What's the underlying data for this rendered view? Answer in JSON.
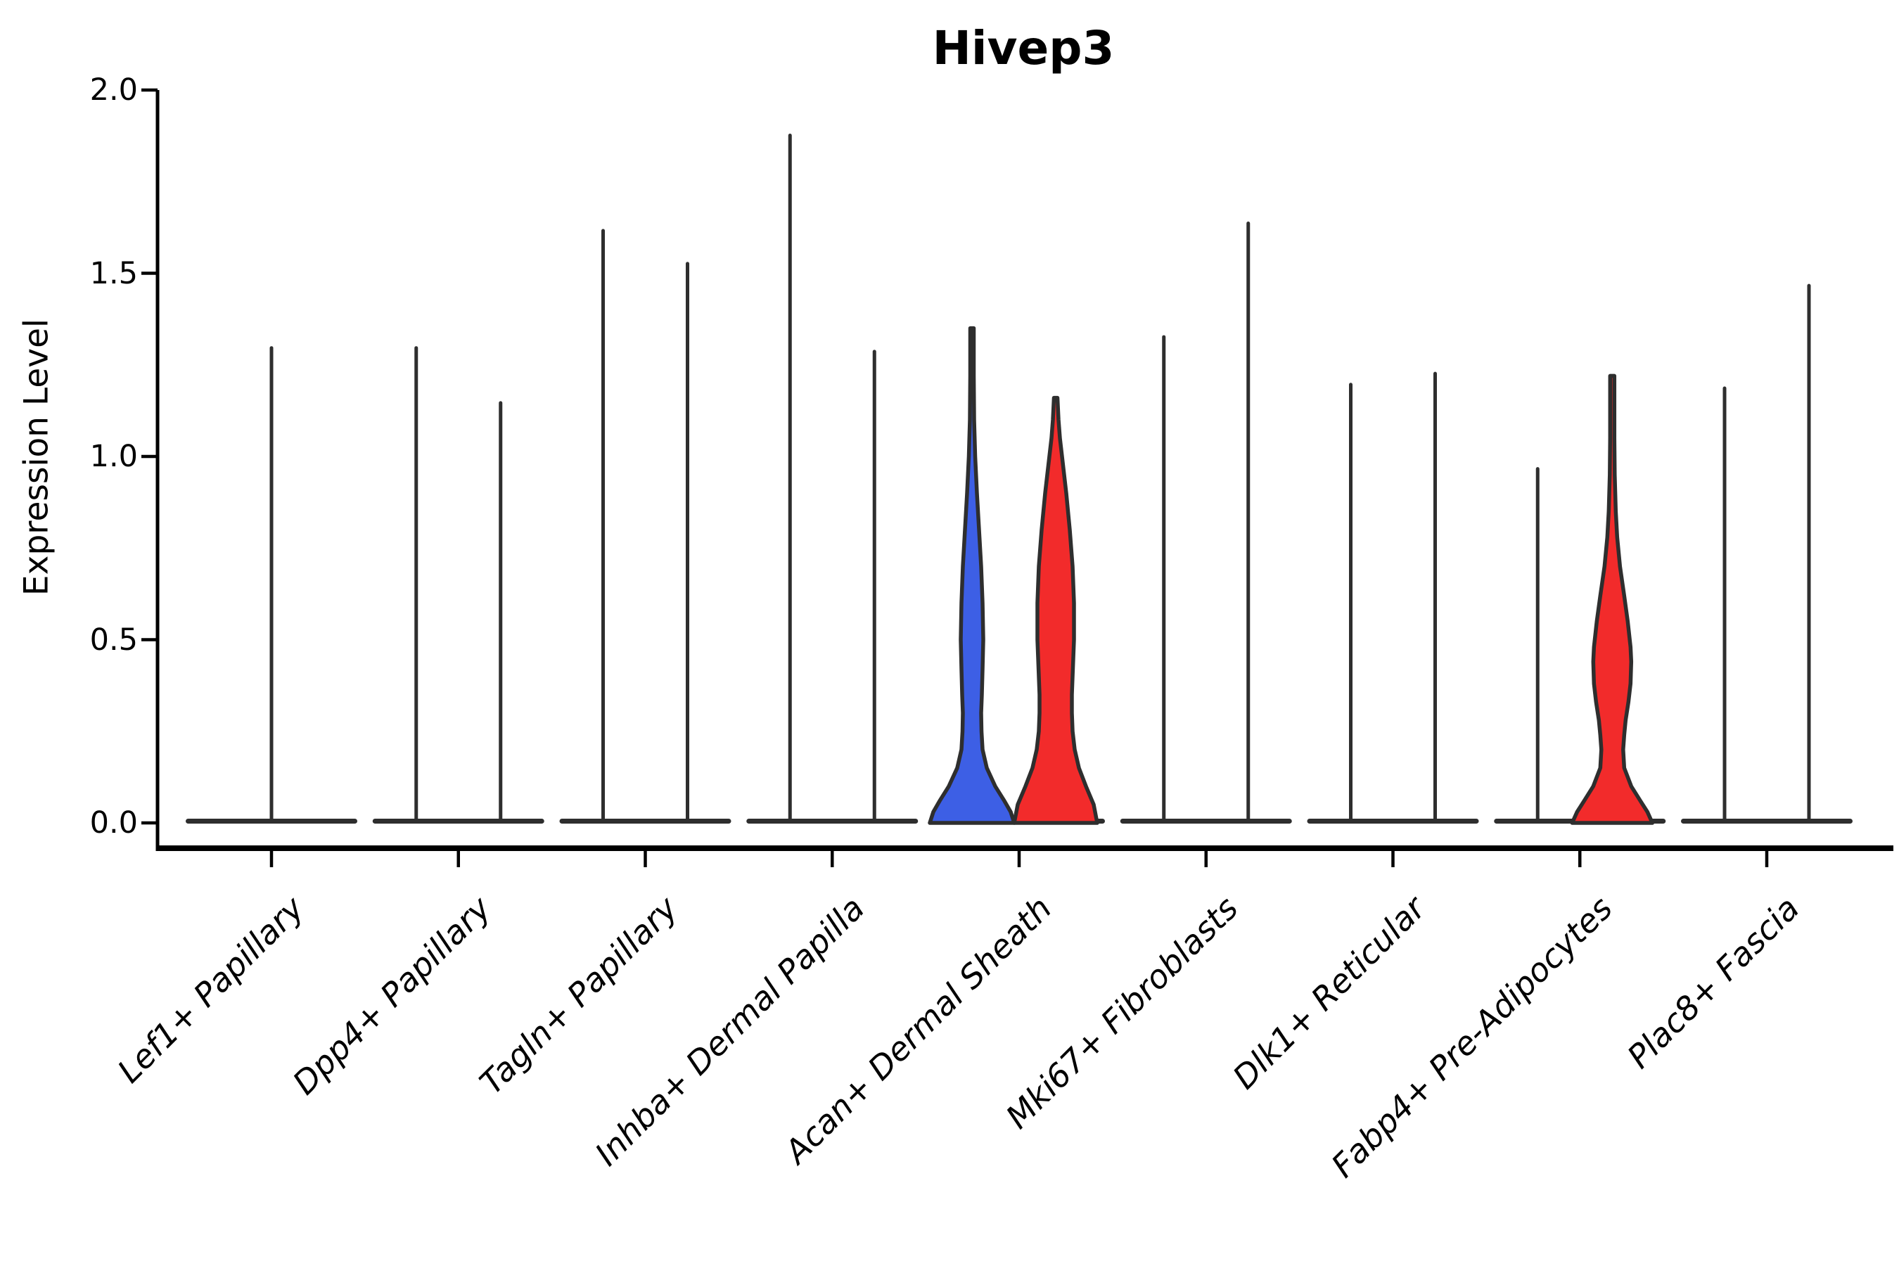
{
  "title": "Hivep3",
  "y_axis": {
    "label": "Expression Level",
    "ticks": [
      "2.0",
      "1.5",
      "1.0",
      "0.5",
      "0.0"
    ],
    "tick_values": [
      2.0,
      1.5,
      1.0,
      0.5,
      0.0
    ]
  },
  "x_axis": {
    "labels": [
      "Lef1+ Papillary",
      "Dpp4+ Papillary",
      "Tagln+ Papillary",
      "Inhba+ Dermal Papilla",
      "Acan+ Dermal Sheath",
      "Mki67+ Fibroblasts",
      "Dlk1+ Reticular",
      "Fabp4+ Pre-Adipocytes",
      "Plac8+ Fascia"
    ]
  },
  "colors": {
    "violin_blue": "#3D5FE5",
    "violin_red": "#F22B2B",
    "violin_outline": "#2E2E2E",
    "axis": "#000000"
  },
  "chart_data": {
    "type": "violin",
    "title": "Hivep3",
    "ylabel": "Expression Level",
    "ylim": [
      0,
      2.0
    ],
    "yticks": [
      0.0,
      0.5,
      1.0,
      1.5,
      2.0
    ],
    "grid": false,
    "legend": false,
    "categories": [
      "Lef1+ Papillary",
      "Dpp4+ Papillary",
      "Tagln+ Papillary",
      "Inhba+ Dermal Papilla",
      "Acan+ Dermal Sheath",
      "Mki67+ Fibroblasts",
      "Dlk1+ Reticular",
      "Fabp4+ Pre-Adipocytes",
      "Plac8+ Fascia"
    ],
    "violins": [
      {
        "category_index": 0,
        "slot": "center",
        "fill": "none",
        "max_expression": 1.3,
        "body": "collapsed-spike"
      },
      {
        "category_index": 1,
        "slot": "left",
        "fill": "none",
        "max_expression": 1.3,
        "body": "collapsed-spike"
      },
      {
        "category_index": 1,
        "slot": "right",
        "fill": "none",
        "max_expression": 1.15,
        "body": "collapsed-spike"
      },
      {
        "category_index": 2,
        "slot": "left",
        "fill": "none",
        "max_expression": 1.62,
        "body": "collapsed-spike"
      },
      {
        "category_index": 2,
        "slot": "right",
        "fill": "none",
        "max_expression": 1.53,
        "body": "collapsed-spike"
      },
      {
        "category_index": 3,
        "slot": "left",
        "fill": "none",
        "max_expression": 1.88,
        "body": "collapsed-spike"
      },
      {
        "category_index": 3,
        "slot": "right",
        "fill": "none",
        "max_expression": 1.29,
        "body": "collapsed-spike"
      },
      {
        "category_index": 4,
        "slot": "left",
        "fill": "blue",
        "max_expression": 1.35,
        "body": "wide",
        "profile": [
          [
            1.35,
            2.5
          ],
          [
            1.22,
            2.5
          ],
          [
            1.1,
            3
          ],
          [
            1.0,
            4.5
          ],
          [
            0.9,
            7
          ],
          [
            0.8,
            10
          ],
          [
            0.7,
            13
          ],
          [
            0.6,
            15
          ],
          [
            0.5,
            16
          ],
          [
            0.42,
            15
          ],
          [
            0.35,
            14
          ],
          [
            0.3,
            13
          ],
          [
            0.25,
            13.5
          ],
          [
            0.2,
            15
          ],
          [
            0.15,
            21
          ],
          [
            0.1,
            33
          ],
          [
            0.06,
            46
          ],
          [
            0.03,
            55
          ],
          [
            0.0,
            60
          ]
        ]
      },
      {
        "category_index": 4,
        "slot": "right",
        "fill": "red",
        "max_expression": 1.16,
        "body": "wide",
        "profile": [
          [
            1.16,
            2.5
          ],
          [
            1.1,
            4
          ],
          [
            1.05,
            6
          ],
          [
            1.0,
            9
          ],
          [
            0.9,
            15
          ],
          [
            0.8,
            20
          ],
          [
            0.7,
            24
          ],
          [
            0.6,
            26
          ],
          [
            0.5,
            26
          ],
          [
            0.45,
            25
          ],
          [
            0.4,
            24
          ],
          [
            0.35,
            23
          ],
          [
            0.3,
            23
          ],
          [
            0.25,
            24
          ],
          [
            0.2,
            27
          ],
          [
            0.15,
            33
          ],
          [
            0.1,
            43
          ],
          [
            0.05,
            54
          ],
          [
            0.0,
            59
          ]
        ]
      },
      {
        "category_index": 5,
        "slot": "left",
        "fill": "none",
        "max_expression": 1.33,
        "body": "collapsed-spike"
      },
      {
        "category_index": 5,
        "slot": "right",
        "fill": "none",
        "max_expression": 1.64,
        "body": "collapsed-spike"
      },
      {
        "category_index": 6,
        "slot": "left",
        "fill": "none",
        "max_expression": 1.2,
        "body": "collapsed-spike"
      },
      {
        "category_index": 6,
        "slot": "right",
        "fill": "none",
        "max_expression": 1.23,
        "body": "collapsed-spike"
      },
      {
        "category_index": 7,
        "slot": "left",
        "fill": "none",
        "max_expression": 0.97,
        "body": "collapsed-spike"
      },
      {
        "category_index": 7,
        "slot": "right",
        "fill": "red",
        "max_expression": 1.22,
        "body": "wide",
        "profile": [
          [
            1.22,
            3
          ],
          [
            1.05,
            3
          ],
          [
            0.95,
            3.5
          ],
          [
            0.85,
            5
          ],
          [
            0.78,
            7
          ],
          [
            0.7,
            11
          ],
          [
            0.62,
            17
          ],
          [
            0.55,
            22
          ],
          [
            0.48,
            26
          ],
          [
            0.44,
            27
          ],
          [
            0.38,
            26
          ],
          [
            0.33,
            23
          ],
          [
            0.28,
            19
          ],
          [
            0.24,
            17
          ],
          [
            0.2,
            15.5
          ],
          [
            0.15,
            17
          ],
          [
            0.1,
            27
          ],
          [
            0.06,
            40
          ],
          [
            0.03,
            50
          ],
          [
            0.0,
            57
          ]
        ]
      },
      {
        "category_index": 8,
        "slot": "left",
        "fill": "none",
        "max_expression": 1.19,
        "body": "collapsed-spike"
      },
      {
        "category_index": 8,
        "slot": "right",
        "fill": "none",
        "max_expression": 1.47,
        "body": "collapsed-spike"
      }
    ]
  }
}
